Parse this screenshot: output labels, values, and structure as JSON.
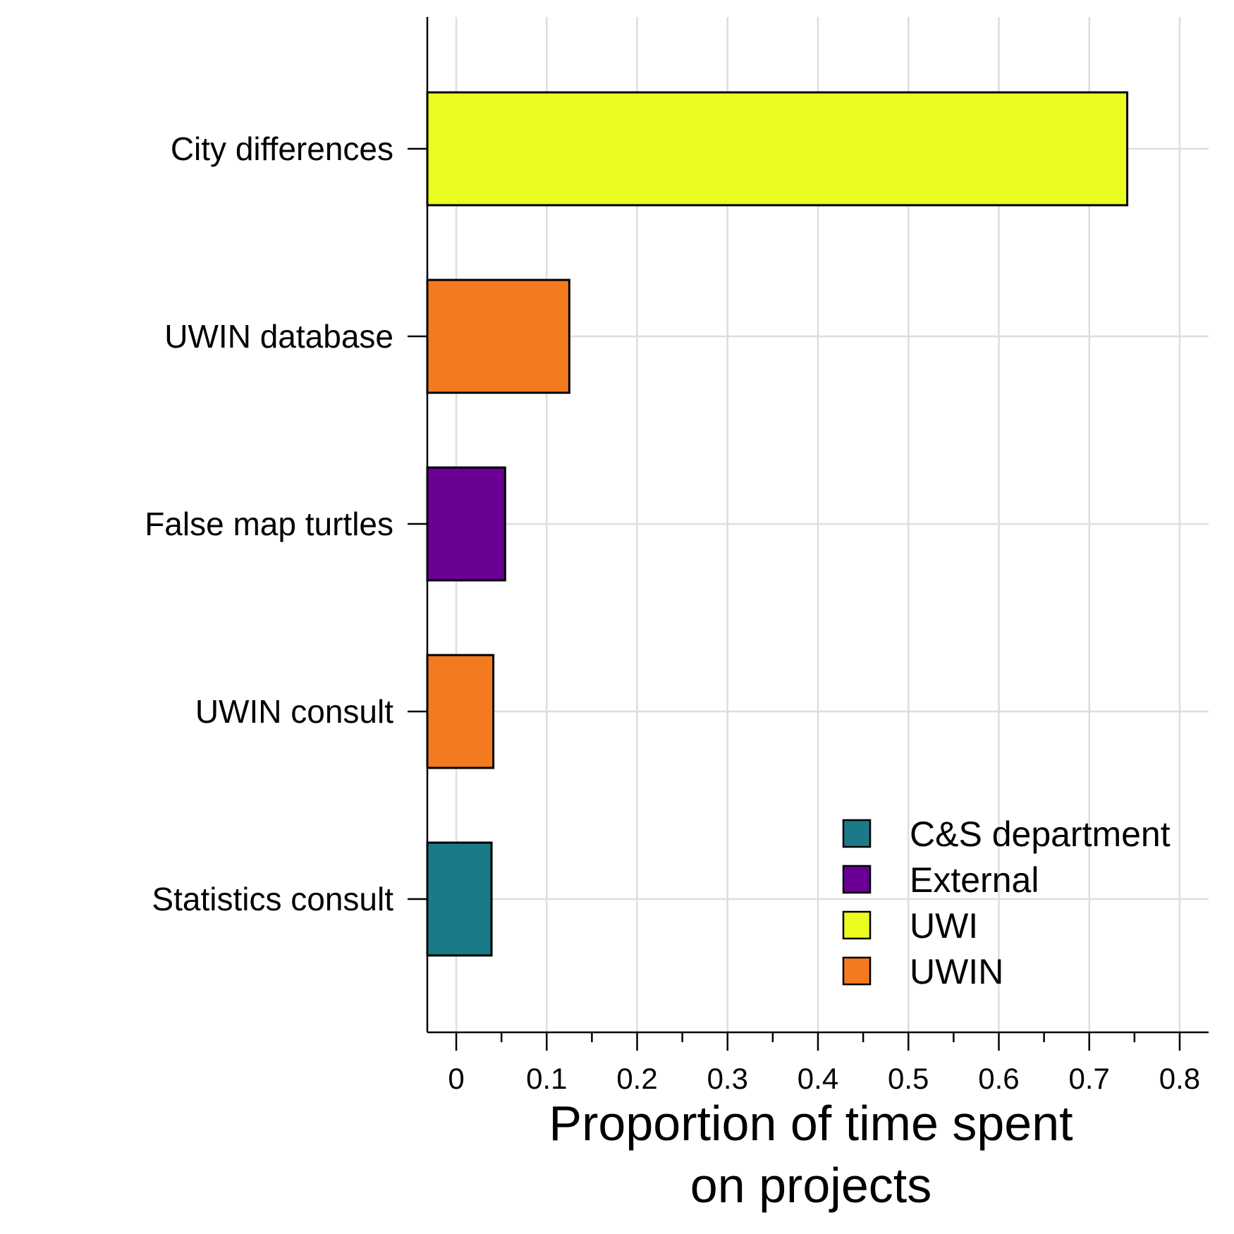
{
  "chart_data": {
    "type": "bar",
    "orientation": "horizontal",
    "categories": [
      "City differences",
      "UWIN database",
      "False map turtles",
      "UWIN consult",
      "Statistics consult"
    ],
    "values": [
      0.742,
      0.125,
      0.054,
      0.041,
      0.039
    ],
    "groups": [
      "UWI",
      "UWIN",
      "External",
      "UWIN",
      "C&S department"
    ],
    "title": "",
    "xlabel": [
      "Proportion of time spent",
      "on projects"
    ],
    "ylabel": "",
    "xlim": [
      -0.032,
      0.832
    ],
    "xticks": [
      {
        "value": 0,
        "label": "0"
      },
      {
        "value": 0.1,
        "label": "0.1"
      },
      {
        "value": 0.2,
        "label": "0.2"
      },
      {
        "value": 0.3,
        "label": "0.3"
      },
      {
        "value": 0.4,
        "label": "0.4"
      },
      {
        "value": 0.5,
        "label": "0.5"
      },
      {
        "value": 0.6,
        "label": "0.6"
      },
      {
        "value": 0.7,
        "label": "0.7"
      },
      {
        "value": 0.8,
        "label": "0.8"
      }
    ],
    "minor_ticks": [
      0.05,
      0.15,
      0.25,
      0.35,
      0.45,
      0.55,
      0.65,
      0.75
    ],
    "grid": true,
    "legend": {
      "placement": "bottom-right",
      "entries": [
        {
          "label": "C&S department",
          "color": "#1b7a87"
        },
        {
          "label": "External",
          "color": "#6a0094"
        },
        {
          "label": "UWI",
          "color": "#eafc20"
        },
        {
          "label": "UWIN",
          "color": "#f47a20"
        }
      ]
    },
    "colors": {
      "C&S department": "#1b7a87",
      "External": "#6a0094",
      "UWI": "#eafc20",
      "UWIN": "#f47a20",
      "grid": "#dddddd",
      "axis": "#000000"
    }
  }
}
